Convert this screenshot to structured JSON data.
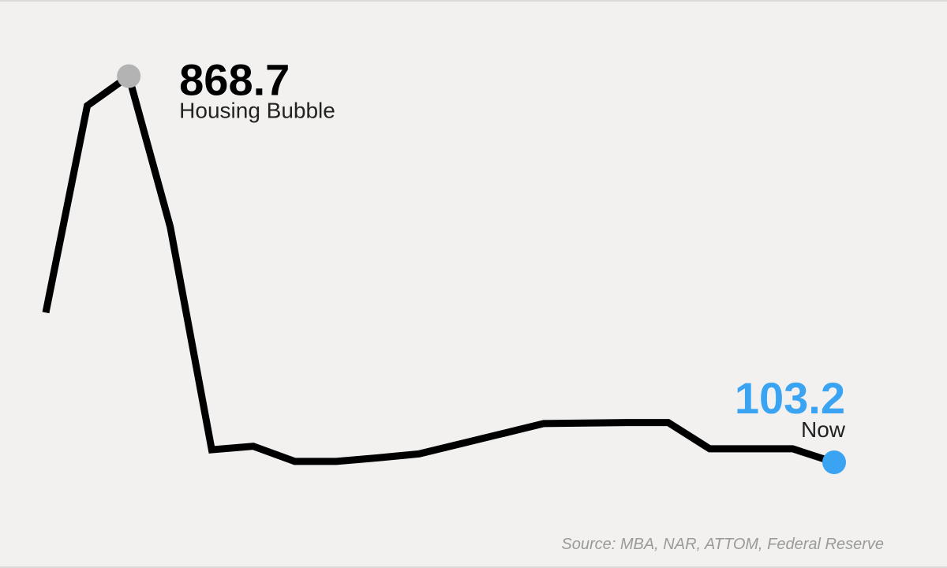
{
  "chart_data": {
    "type": "line",
    "title": "",
    "xlabel": "",
    "ylabel": "",
    "grid": false,
    "legend": "none",
    "x": [
      1,
      2,
      3,
      4,
      5,
      6,
      7,
      8,
      9,
      10,
      11,
      12,
      13,
      14,
      15,
      16,
      17,
      18,
      19,
      20
    ],
    "series": [
      {
        "values": [
          400,
          810,
          868.7,
          570,
          128,
          135,
          105,
          105,
          112,
          120,
          140,
          160,
          180,
          181,
          182,
          182,
          130,
          130,
          130,
          103.2
        ],
        "color": "#000000"
      }
    ],
    "ylim": [
      0,
      950
    ],
    "annotations": [
      {
        "point_index": 2,
        "value": "868.7",
        "label": "Housing Bubble",
        "marker_color": "#b3b3b3",
        "value_color": "#000000"
      },
      {
        "point_index": 19,
        "value": "103.2",
        "label": "Now",
        "marker_color": "#3aa3f2",
        "value_color": "#3aa3f2"
      }
    ],
    "source": "Source: MBA, NAR, ATTOM, Federal Reserve"
  }
}
